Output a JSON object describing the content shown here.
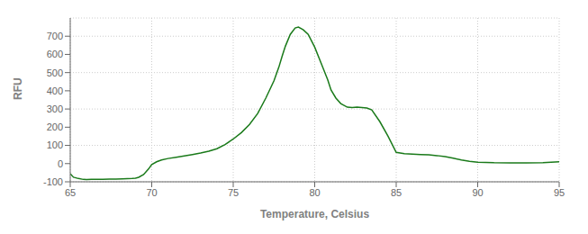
{
  "chart_data": {
    "type": "line",
    "xlabel": "Temperature, Celsius",
    "ylabel": "RFU",
    "color": "#1a7a1a",
    "grid": true,
    "xlim": [
      65,
      95
    ],
    "ylim": [
      -100,
      800
    ],
    "xticks": [
      65,
      70,
      75,
      80,
      85,
      90,
      95
    ],
    "yticks": [
      -100,
      0,
      100,
      200,
      300,
      400,
      500,
      600,
      700
    ],
    "x": [
      65.0,
      65.2,
      65.5,
      65.8,
      66.0,
      66.3,
      66.6,
      67.0,
      67.4,
      67.8,
      68.2,
      68.5,
      68.8,
      69.0,
      69.2,
      69.5,
      69.8,
      70.0,
      70.3,
      70.6,
      71.0,
      71.5,
      72.0,
      72.5,
      73.0,
      73.5,
      74.0,
      74.5,
      75.0,
      75.5,
      76.0,
      76.5,
      77.0,
      77.5,
      77.8,
      78.0,
      78.2,
      78.5,
      78.8,
      79.0,
      79.3,
      79.6,
      80.0,
      80.4,
      80.8,
      81.0,
      81.3,
      81.6,
      82.0,
      82.3,
      82.6,
      82.9,
      83.2,
      83.5,
      84.0,
      84.5,
      85.0,
      85.5,
      86.0,
      86.5,
      87.0,
      87.5,
      88.0,
      88.5,
      89.0,
      89.5,
      90.0,
      91.0,
      92.0,
      93.0,
      94.0,
      95.0
    ],
    "values": [
      -55,
      -75,
      -82,
      -87,
      -88,
      -87,
      -87,
      -86,
      -85,
      -85,
      -84,
      -83,
      -82,
      -80,
      -75,
      -60,
      -30,
      -5,
      10,
      20,
      28,
      35,
      42,
      50,
      58,
      68,
      82,
      105,
      135,
      170,
      215,
      275,
      360,
      455,
      530,
      590,
      645,
      710,
      745,
      750,
      735,
      710,
      640,
      550,
      460,
      405,
      360,
      330,
      310,
      308,
      310,
      308,
      305,
      295,
      230,
      150,
      62,
      54,
      52,
      50,
      48,
      44,
      38,
      30,
      20,
      12,
      8,
      5,
      4,
      4,
      5,
      10
    ]
  }
}
